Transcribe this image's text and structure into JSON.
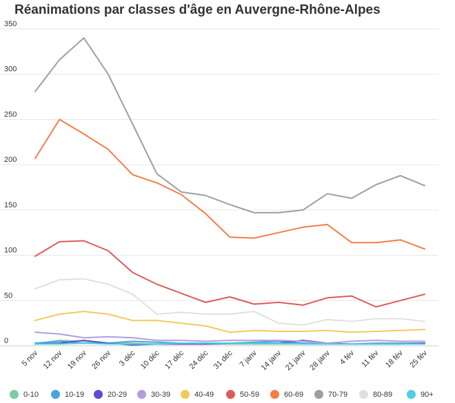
{
  "chart_data": {
    "type": "line",
    "title": "Réanimations par classes d'âge en Auvergne-Rhône-Alpes",
    "xlabel": "",
    "ylabel": "",
    "ylim": [
      0,
      350
    ],
    "yticks": [
      "0",
      "50",
      "100",
      "150",
      "200",
      "250",
      "300",
      "350"
    ],
    "grid": true,
    "legend_position": "bottom",
    "categories": [
      "5 nov",
      "12 nov",
      "19 nov",
      "26 nov",
      "3 déc",
      "10 déc",
      "17 déc",
      "24 déc",
      "31 déc",
      "7 janv",
      "14 janv",
      "21 janv",
      "28 janv",
      "4 fév",
      "11 fév",
      "18 fév",
      "25 fév"
    ],
    "series": [
      {
        "name": "0-10",
        "color": "#7ecba1",
        "values": [
          2,
          6,
          5,
          3,
          3,
          2,
          2,
          2,
          2,
          2,
          2,
          2,
          2,
          2,
          2,
          2,
          3
        ]
      },
      {
        "name": "10-19",
        "color": "#4aa3df",
        "values": [
          3,
          5,
          3,
          3,
          5,
          4,
          3,
          3,
          3,
          4,
          5,
          3,
          2,
          2,
          3,
          3,
          3
        ]
      },
      {
        "name": "20-29",
        "color": "#5b4dd1",
        "values": [
          2,
          3,
          6,
          3,
          1,
          2,
          2,
          2,
          3,
          3,
          3,
          6,
          3,
          2,
          2,
          2,
          3
        ]
      },
      {
        "name": "30-39",
        "color": "#b39ddb",
        "values": [
          15,
          13,
          9,
          10,
          9,
          6,
          6,
          5,
          6,
          6,
          6,
          5,
          3,
          5,
          6,
          5,
          5
        ]
      },
      {
        "name": "40-49",
        "color": "#f3c95c",
        "values": [
          28,
          35,
          38,
          35,
          28,
          28,
          25,
          22,
          15,
          17,
          16,
          16,
          17,
          15,
          16,
          17,
          18
        ]
      },
      {
        "name": "50-59",
        "color": "#de5a5a",
        "values": [
          99,
          115,
          116,
          105,
          81,
          68,
          58,
          48,
          54,
          46,
          48,
          45,
          53,
          55,
          43,
          50,
          57
        ]
      },
      {
        "name": "60-69",
        "color": "#f57c45",
        "values": [
          207,
          250,
          234,
          217,
          189,
          180,
          167,
          146,
          120,
          119,
          125,
          131,
          134,
          114,
          114,
          117,
          107
        ]
      },
      {
        "name": "70-79",
        "color": "#9e9e9e",
        "values": [
          281,
          316,
          340,
          300,
          245,
          190,
          170,
          166,
          156,
          147,
          147,
          150,
          168,
          163,
          178,
          188,
          177
        ]
      },
      {
        "name": "80-89",
        "color": "#e0e0e0",
        "values": [
          63,
          73,
          74,
          68,
          57,
          35,
          37,
          35,
          35,
          38,
          25,
          23,
          29,
          27,
          30,
          30,
          27
        ]
      },
      {
        "name": "90+",
        "color": "#4dd0e1",
        "values": [
          2,
          2,
          3,
          2,
          2,
          2,
          3,
          3,
          3,
          3,
          3,
          2,
          2,
          2,
          2,
          2,
          2
        ]
      }
    ]
  }
}
